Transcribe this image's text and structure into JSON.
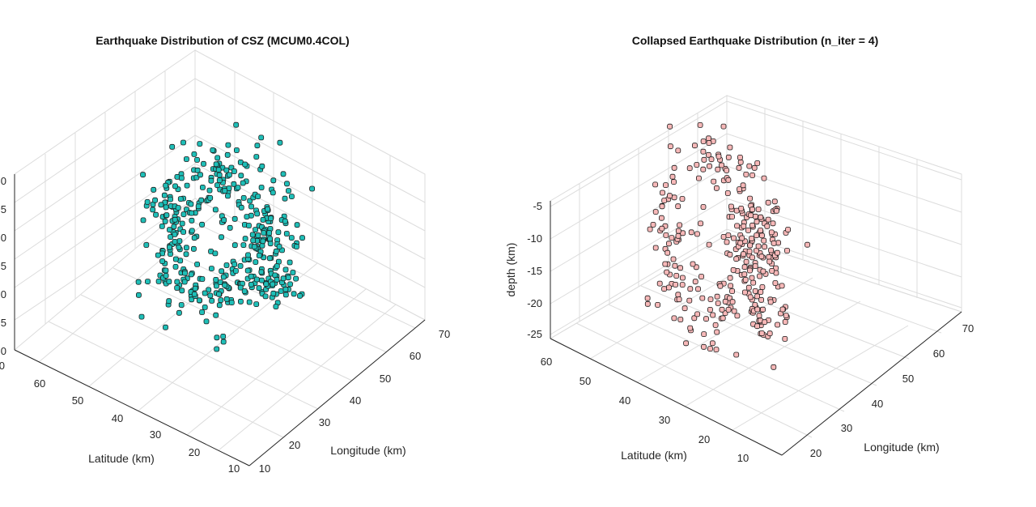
{
  "chart_data": [
    {
      "type": "scatter",
      "title": "Earthquake Distribution of CSZ (MCUM0.4COL)",
      "xlabel": "Latitude (km)",
      "ylabel": "Longitude (km)",
      "zlabel": "",
      "x_ticks": [
        "20",
        "30",
        "40",
        "50",
        "60"
      ],
      "y_ticks": [
        "10",
        "20",
        "30",
        "40",
        "50",
        "60",
        "70"
      ],
      "z_ticks": [
        "0",
        "5",
        "0",
        "5",
        "0",
        "5",
        "0"
      ],
      "grid": true,
      "marker_color": "#1fbfb8",
      "marker_edge": "#1a1a1a"
    },
    {
      "type": "scatter",
      "title": "Collapsed Earthquake Distribution (n_iter = 4)",
      "xlabel": "Latitude (km)",
      "ylabel": "Longitude (km)",
      "zlabel": "depth (km)",
      "x_ticks": [
        "10",
        "20",
        "30",
        "40",
        "50",
        "60"
      ],
      "y_ticks": [
        "20",
        "30",
        "40",
        "50",
        "60",
        "70"
      ],
      "z_ticks": [
        "-5",
        "-10",
        "-15",
        "-20",
        "-25"
      ],
      "grid": true,
      "marker_color": "#f7b8b8",
      "marker_edge": "#1a1a1a"
    }
  ]
}
